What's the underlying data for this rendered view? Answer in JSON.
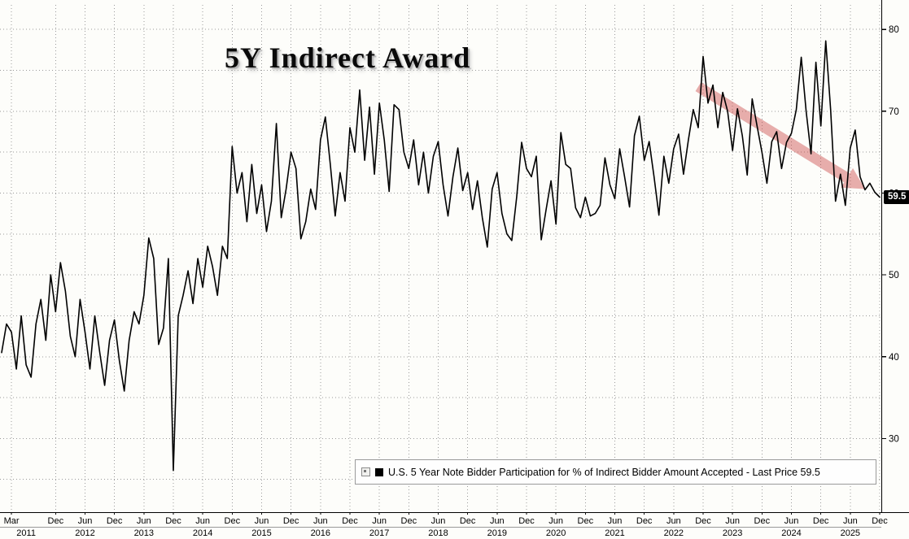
{
  "chart": {
    "title": "5Y Indirect Award",
    "last_price_label": "59.5",
    "legend": {
      "marker_color": "#000000",
      "label": "U.S. 5 Year Note Bidder Participation for % of Indirect Bidder Amount Accepted - Last Price 59.5"
    }
  },
  "chart_data": {
    "type": "line",
    "title": "5Y Indirect Award",
    "series_name": "U.S. 5 Year Note Bidder Participation for % of Indirect Bidder Amount Accepted",
    "frequency": "monthly",
    "x_start": "2011-01",
    "x_end": "2025-12",
    "values": [
      40.5,
      44,
      43,
      38.5,
      45,
      39,
      37.5,
      44,
      47,
      42,
      50,
      45.5,
      51.5,
      48,
      42.5,
      40,
      47,
      43,
      38.5,
      45,
      40.5,
      36.5,
      42,
      44.5,
      39.5,
      35.8,
      42,
      45.5,
      44,
      47.5,
      54.5,
      52,
      41.5,
      43.5,
      52,
      26.1,
      45,
      47.5,
      50.5,
      46.5,
      52,
      48.5,
      53.5,
      51,
      47.5,
      53.5,
      52,
      65.7,
      60,
      62.5,
      56.5,
      63.5,
      57.5,
      61,
      55.3,
      59,
      68.5,
      57,
      60.5,
      65,
      63,
      54.4,
      56.5,
      60.5,
      58,
      66.5,
      69.3,
      63.5,
      57.2,
      62.5,
      59,
      68,
      65,
      72.6,
      64,
      70.5,
      62.3,
      71,
      66.5,
      60.2,
      70.8,
      70.2,
      65,
      63,
      66.5,
      61,
      65,
      60,
      64.5,
      66.3,
      61,
      57.2,
      62,
      65.5,
      60.3,
      62.5,
      58,
      61.5,
      57,
      53.4,
      60.5,
      62.5,
      57.5,
      55,
      54.2,
      59.5,
      66.2,
      63,
      62,
      64.5,
      54.3,
      58,
      61.5,
      56.2,
      67.4,
      63.5,
      63,
      58.2,
      57,
      59.5,
      57.2,
      57.5,
      58.5,
      64.3,
      61,
      59.3,
      65.4,
      62,
      58.3,
      67,
      69.4,
      64,
      66.3,
      62,
      57.3,
      64.5,
      61.2,
      65.4,
      67.2,
      62.3,
      66.5,
      70.2,
      68,
      76.7,
      71,
      73.2,
      68,
      72.3,
      70,
      65.2,
      70.3,
      67,
      62.2,
      71.5,
      68.2,
      65,
      61.2,
      66.3,
      67.5,
      63,
      66.2,
      67.3,
      70.2,
      76.6,
      70,
      64.8,
      76,
      68.2,
      78.6,
      70.2,
      59,
      62.3,
      58.5,
      65.5,
      67.7,
      62,
      60.4,
      61.2,
      60.1,
      59.5
    ],
    "last_price": 59.5,
    "y_ticks": [
      30,
      40,
      50,
      60,
      70,
      80
    ],
    "ylim": [
      21,
      83
    ],
    "grid": "dotted",
    "line_color": "#000000",
    "legend_position": "bottom-right",
    "x_axis": {
      "first_tick_label": "Mar",
      "jun_label": "Jun",
      "dec_label": "Dec",
      "years": [
        "2011",
        "2012",
        "2013",
        "2014",
        "2015",
        "2016",
        "2017",
        "2018",
        "2019",
        "2020",
        "2021",
        "2022",
        "2023",
        "2024",
        "2025"
      ]
    },
    "annotation_arrow": {
      "x1_index": 142,
      "y1_value": 73,
      "x2_index": 176,
      "y2_value": 60.5,
      "color": "rgba(205,75,75,0.45)"
    }
  }
}
